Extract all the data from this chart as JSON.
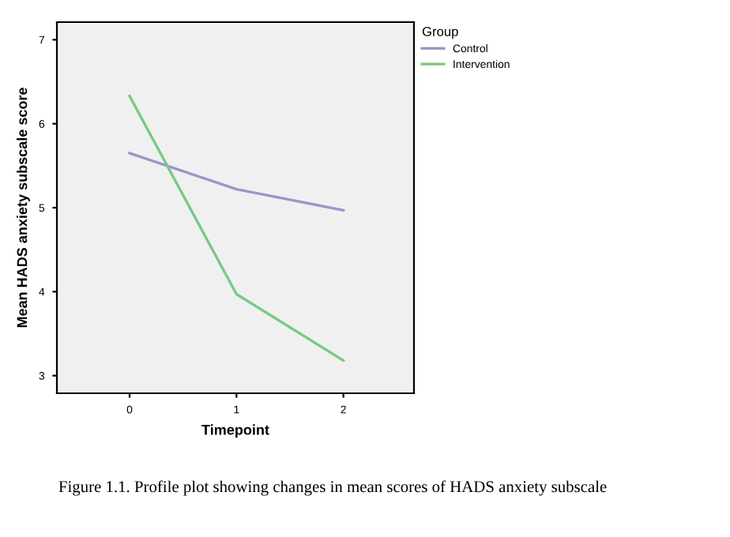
{
  "chart_data": {
    "type": "line",
    "xlabel": "Timepoint",
    "ylabel": "Mean HADS anxiety subscale score",
    "legend_title": "Group",
    "x": [
      0,
      1,
      2
    ],
    "series": [
      {
        "name": "Control",
        "color": "#9a96c8",
        "values": [
          5.65,
          5.22,
          4.97
        ]
      },
      {
        "name": "Intervention",
        "color": "#78c987",
        "values": [
          6.33,
          3.97,
          3.18
        ]
      }
    ],
    "xlim": [
      -0.68,
      2.66
    ],
    "xticks": [
      0,
      1,
      2
    ],
    "ylim": [
      2.79,
      7.21
    ],
    "yticks": [
      3,
      4,
      5,
      6,
      7
    ],
    "grid": false,
    "legend": "top right",
    "annotations": [
      "Figure 1.1. Profile plot showing changes in mean scores of HADS anxiety subscale"
    ]
  }
}
